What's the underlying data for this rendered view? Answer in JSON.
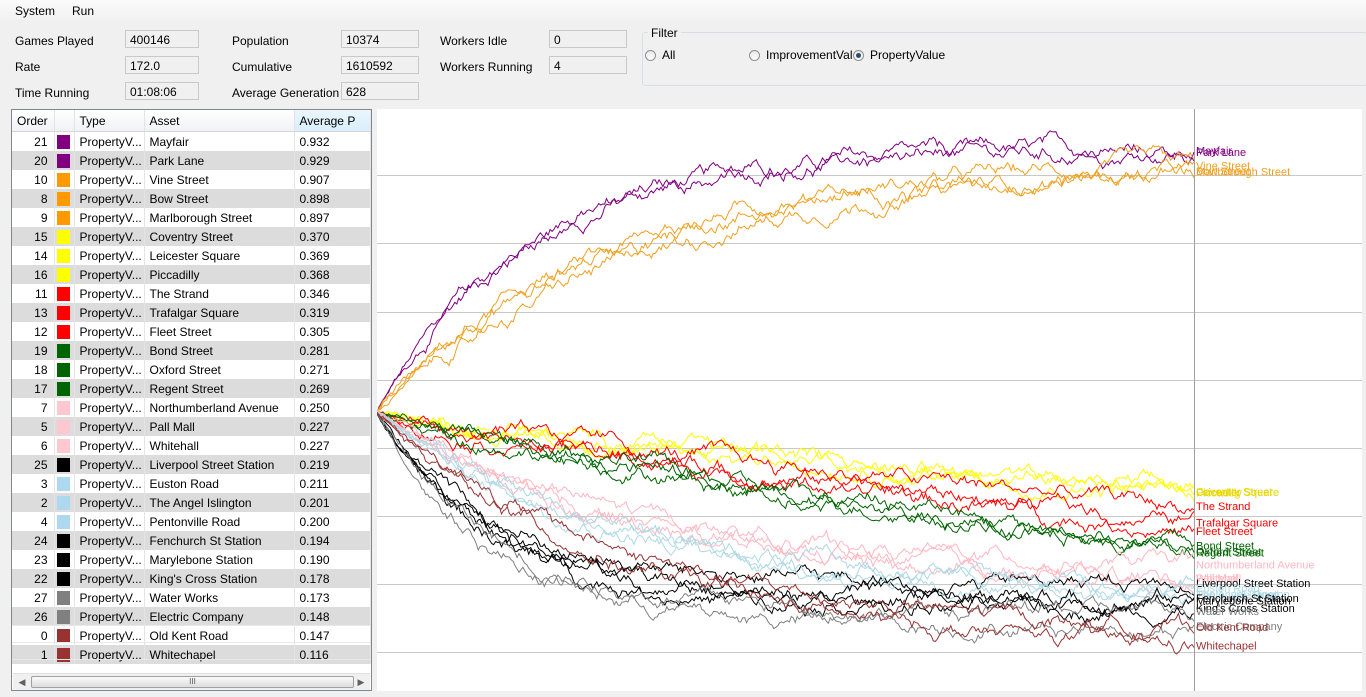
{
  "menu": [
    "System",
    "Run"
  ],
  "stats": {
    "games_played": {
      "label": "Games Played",
      "value": "400146"
    },
    "rate": {
      "label": "Rate",
      "value": "172.0"
    },
    "time_running": {
      "label": "Time Running",
      "value": "01:08:06"
    },
    "population": {
      "label": "Population",
      "value": "10374"
    },
    "cumulative": {
      "label": "Cumulative",
      "value": "1610592"
    },
    "average_generation": {
      "label": "Average Generation",
      "value": "628"
    },
    "workers_idle": {
      "label": "Workers Idle",
      "value": "0"
    },
    "workers_running": {
      "label": "Workers Running",
      "value": "4"
    }
  },
  "filter": {
    "title": "Filter",
    "options": [
      {
        "label": "All",
        "selected": false
      },
      {
        "label": "ImprovementVal",
        "selected": false
      },
      {
        "label": "PropertyValue",
        "selected": true
      }
    ]
  },
  "table": {
    "columns": [
      "Order",
      "",
      "Type",
      "Asset",
      "Average P"
    ],
    "rows": [
      {
        "order": "21",
        "color": "#800080",
        "type": "PropertyV...",
        "asset": "Mayfair",
        "avg": "0.932"
      },
      {
        "order": "20",
        "color": "#800080",
        "type": "PropertyV...",
        "asset": "Park Lane",
        "avg": "0.929"
      },
      {
        "order": "10",
        "color": "#ff9900",
        "type": "PropertyV...",
        "asset": "Vine Street",
        "avg": "0.907"
      },
      {
        "order": "8",
        "color": "#ff9900",
        "type": "PropertyV...",
        "asset": "Bow Street",
        "avg": "0.898"
      },
      {
        "order": "9",
        "color": "#ff9900",
        "type": "PropertyV...",
        "asset": "Marlborough Street",
        "avg": "0.897"
      },
      {
        "order": "15",
        "color": "#ffff00",
        "type": "PropertyV...",
        "asset": "Coventry Street",
        "avg": "0.370"
      },
      {
        "order": "14",
        "color": "#ffff00",
        "type": "PropertyV...",
        "asset": "Leicester Square",
        "avg": "0.369"
      },
      {
        "order": "16",
        "color": "#ffff00",
        "type": "PropertyV...",
        "asset": "Piccadilly",
        "avg": "0.368"
      },
      {
        "order": "11",
        "color": "#ff0000",
        "type": "PropertyV...",
        "asset": "The Strand",
        "avg": "0.346"
      },
      {
        "order": "13",
        "color": "#ff0000",
        "type": "PropertyV...",
        "asset": "Trafalgar Square",
        "avg": "0.319"
      },
      {
        "order": "12",
        "color": "#ff0000",
        "type": "PropertyV...",
        "asset": "Fleet Street",
        "avg": "0.305"
      },
      {
        "order": "19",
        "color": "#006400",
        "type": "PropertyV...",
        "asset": "Bond Street",
        "avg": "0.281"
      },
      {
        "order": "18",
        "color": "#006400",
        "type": "PropertyV...",
        "asset": "Oxford Street",
        "avg": "0.271"
      },
      {
        "order": "17",
        "color": "#006400",
        "type": "PropertyV...",
        "asset": "Regent Street",
        "avg": "0.269"
      },
      {
        "order": "7",
        "color": "#ffc8d0",
        "type": "PropertyV...",
        "asset": "Northumberland Avenue",
        "avg": "0.250"
      },
      {
        "order": "5",
        "color": "#ffc8d0",
        "type": "PropertyV...",
        "asset": "Pall Mall",
        "avg": "0.227"
      },
      {
        "order": "6",
        "color": "#ffc8d0",
        "type": "PropertyV...",
        "asset": "Whitehall",
        "avg": "0.227"
      },
      {
        "order": "25",
        "color": "#000000",
        "type": "PropertyV...",
        "asset": "Liverpool Street Station",
        "avg": "0.219"
      },
      {
        "order": "3",
        "color": "#add8f0",
        "type": "PropertyV...",
        "asset": "Euston Road",
        "avg": "0.211"
      },
      {
        "order": "2",
        "color": "#add8f0",
        "type": "PropertyV...",
        "asset": "The Angel Islington",
        "avg": "0.201"
      },
      {
        "order": "4",
        "color": "#add8f0",
        "type": "PropertyV...",
        "asset": "Pentonville Road",
        "avg": "0.200"
      },
      {
        "order": "24",
        "color": "#000000",
        "type": "PropertyV...",
        "asset": "Fenchurch St Station",
        "avg": "0.194"
      },
      {
        "order": "23",
        "color": "#000000",
        "type": "PropertyV...",
        "asset": "Marylebone Station",
        "avg": "0.190"
      },
      {
        "order": "22",
        "color": "#000000",
        "type": "PropertyV...",
        "asset": "King's Cross Station",
        "avg": "0.178"
      },
      {
        "order": "27",
        "color": "#808080",
        "type": "PropertyV...",
        "asset": "Water Works",
        "avg": "0.173"
      },
      {
        "order": "26",
        "color": "#808080",
        "type": "PropertyV...",
        "asset": "Electric Company",
        "avg": "0.148"
      },
      {
        "order": "0",
        "color": "#993333",
        "type": "PropertyV...",
        "asset": "Old Kent Road",
        "avg": "0.147"
      },
      {
        "order": "1",
        "color": "#993333",
        "type": "PropertyV...",
        "asset": "Whitechapel",
        "avg": "0.116"
      }
    ],
    "scroll_thumb_glyph": "III"
  },
  "chart_data": {
    "type": "line",
    "title": "",
    "xlabel": "",
    "ylabel": "",
    "grid": true,
    "ylim": [
      0,
      1
    ],
    "start_value": 0.5,
    "series": [
      {
        "name": "Mayfair",
        "color": "#800080",
        "final": 0.932,
        "shape": "fast"
      },
      {
        "name": "Park Lane",
        "color": "#800080",
        "final": 0.929,
        "shape": "fast"
      },
      {
        "name": "Vine Street",
        "color": "#f0a020",
        "final": 0.907,
        "shape": "med"
      },
      {
        "name": "Bow Street",
        "color": "#f0a020",
        "final": 0.898,
        "shape": "med"
      },
      {
        "name": "Marlborough Street",
        "color": "#f0a020",
        "final": 0.897,
        "shape": "slow"
      },
      {
        "name": "Coventry Street",
        "color": "#ffff00",
        "final": 0.37,
        "shape": "lin"
      },
      {
        "name": "Leicester Square",
        "color": "#ffff00",
        "final": 0.369,
        "shape": "lin"
      },
      {
        "name": "Piccadilly",
        "color": "#ffff00",
        "final": 0.368,
        "shape": "lin"
      },
      {
        "name": "The Strand",
        "color": "#ff0000",
        "final": 0.346,
        "shape": "lin"
      },
      {
        "name": "Trafalgar Square",
        "color": "#ff0000",
        "final": 0.319,
        "shape": "lin"
      },
      {
        "name": "Fleet Street",
        "color": "#ff0000",
        "final": 0.305,
        "shape": "lin"
      },
      {
        "name": "Bond Street",
        "color": "#006400",
        "final": 0.281,
        "shape": "lin"
      },
      {
        "name": "Oxford Street",
        "color": "#006400",
        "final": 0.271,
        "shape": "lin"
      },
      {
        "name": "Regent Street",
        "color": "#006400",
        "final": 0.269,
        "shape": "lin"
      },
      {
        "name": "Northumberland Avenue",
        "color": "#ffb6c1",
        "final": 0.25,
        "shape": "mid"
      },
      {
        "name": "Pall Mall",
        "color": "#ffb6c1",
        "final": 0.227,
        "shape": "mid"
      },
      {
        "name": "Whitehall",
        "color": "#ffb6c1",
        "final": 0.227,
        "shape": "mid"
      },
      {
        "name": "Liverpool Street Station",
        "color": "#000000",
        "final": 0.219,
        "shape": "drop"
      },
      {
        "name": "Euston Road",
        "color": "#add8e6",
        "final": 0.211,
        "shape": "mid"
      },
      {
        "name": "The Angel Islington",
        "color": "#add8e6",
        "final": 0.201,
        "shape": "mid"
      },
      {
        "name": "Pentonville Road",
        "color": "#add8e6",
        "final": 0.2,
        "shape": "mid"
      },
      {
        "name": "Fenchurch St Station",
        "color": "#000000",
        "final": 0.194,
        "shape": "drop"
      },
      {
        "name": "Marylebone Station",
        "color": "#000000",
        "final": 0.19,
        "shape": "drop"
      },
      {
        "name": "King's Cross Station",
        "color": "#000000",
        "final": 0.178,
        "shape": "drop"
      },
      {
        "name": "Water Works",
        "color": "#808080",
        "final": 0.173,
        "shape": "drop"
      },
      {
        "name": "Electric Company",
        "color": "#808080",
        "final": 0.148,
        "shape": "drop"
      },
      {
        "name": "Old Kent Road",
        "color": "#993333",
        "final": 0.147,
        "shape": "mid"
      },
      {
        "name": "Whitechapel",
        "color": "#993333",
        "final": 0.116,
        "shape": "mid"
      }
    ]
  }
}
